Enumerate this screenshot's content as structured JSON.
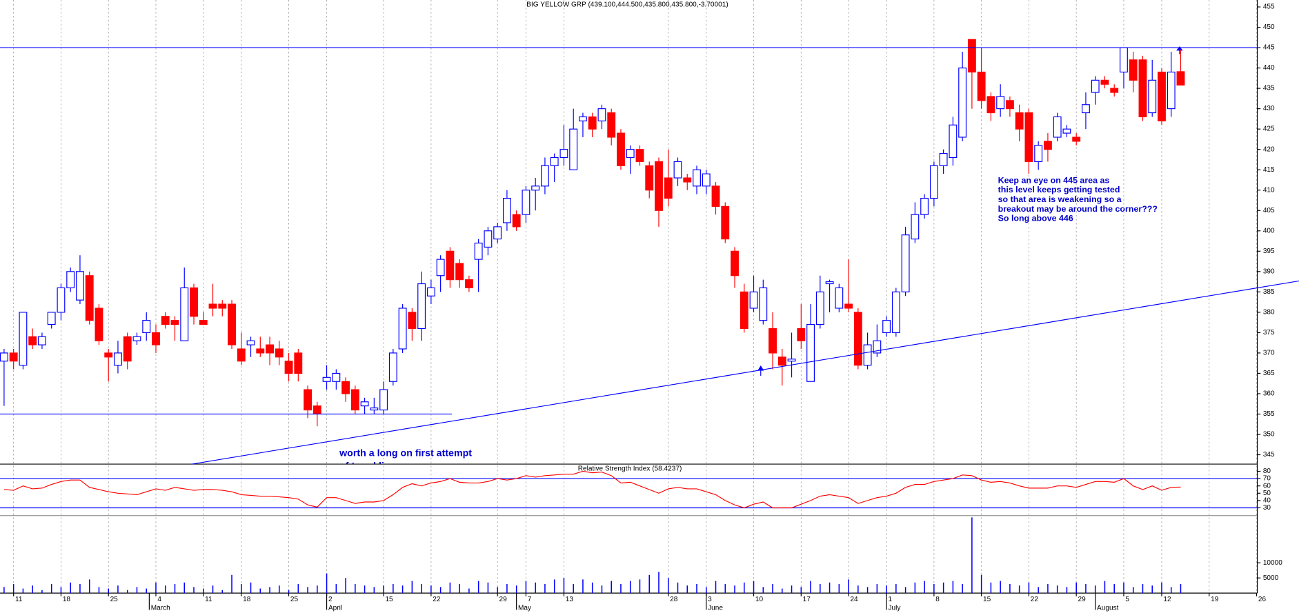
{
  "chart_data": [
    {
      "type": "candlestick",
      "title": "BIG YELLOW GRP (439.100,444.500,435.800,435.800,-3.70001)",
      "open": [
        368,
        370,
        367,
        374,
        372,
        377,
        380,
        386,
        383,
        389,
        381,
        370,
        367,
        374,
        373,
        375,
        375,
        379,
        378,
        373,
        386,
        378,
        382,
        382,
        382,
        371,
        372,
        371,
        372,
        371,
        368,
        370,
        361,
        357,
        363,
        363,
        363,
        361,
        357,
        356,
        356,
        363,
        371,
        380,
        376,
        384,
        389,
        395,
        392,
        388,
        393,
        396,
        398,
        402,
        404,
        404,
        410,
        411,
        416,
        418,
        415,
        427,
        428,
        427,
        429,
        424,
        418,
        420,
        416,
        417,
        413,
        413,
        413,
        411,
        411,
        411,
        406,
        395,
        385,
        381,
        378,
        376,
        369,
        368,
        376,
        363,
        377,
        387,
        381,
        382,
        380,
        367,
        370,
        375,
        375,
        385,
        398,
        404,
        408,
        416,
        418,
        423,
        447,
        439,
        433,
        430,
        432,
        429,
        429,
        417,
        422,
        423,
        424,
        423,
        429,
        434,
        437,
        435,
        439,
        442,
        442,
        429,
        439,
        430,
        439.1
      ],
      "high": [
        371,
        371,
        380,
        376,
        375,
        380,
        387,
        391,
        394,
        390,
        382,
        371,
        373,
        375,
        375,
        380,
        377,
        380,
        379,
        391,
        387,
        380,
        387,
        383,
        383,
        375,
        374,
        374,
        374,
        373,
        370,
        371,
        362,
        358,
        367,
        366,
        364,
        362,
        359,
        359,
        363,
        371,
        382,
        381,
        390,
        388,
        394,
        396,
        393,
        389,
        398,
        401,
        402,
        410,
        405,
        411,
        413,
        418,
        419,
        426,
        430,
        429,
        429,
        431,
        430,
        425,
        421,
        421,
        417,
        418,
        420,
        418,
        414,
        416,
        415,
        412,
        407,
        396,
        387,
        389,
        388,
        380,
        371,
        375,
        382,
        382,
        389,
        388,
        387,
        393,
        381,
        375,
        377,
        379,
        386,
        401,
        407,
        409,
        417,
        420,
        428,
        444,
        447,
        445,
        434,
        436,
        433,
        431,
        430,
        422,
        424,
        429,
        426,
        424,
        434,
        438,
        438,
        436,
        445,
        444,
        443,
        442,
        440,
        444,
        444.5
      ],
      "low": [
        357,
        366,
        366,
        371,
        371,
        376,
        378,
        385,
        382,
        377,
        372,
        363,
        365,
        366,
        372,
        373,
        370,
        376,
        373,
        373,
        377,
        377,
        379,
        379,
        371,
        367,
        369,
        369,
        367,
        367,
        363,
        363,
        354,
        352,
        361,
        361,
        358,
        355,
        355,
        355,
        355,
        362,
        370,
        373,
        373,
        382,
        385,
        386,
        386,
        385,
        385,
        394,
        397,
        400,
        400,
        402,
        405,
        409,
        412,
        416,
        415,
        423,
        423,
        425,
        421,
        415,
        414,
        416,
        408,
        401,
        406,
        411,
        410,
        409,
        409,
        404,
        397,
        386,
        375,
        380,
        377,
        366,
        362,
        364,
        371,
        363,
        376,
        380,
        380,
        380,
        366,
        366,
        369,
        374,
        374,
        384,
        397,
        403,
        406,
        414,
        416,
        422,
        430,
        430,
        427,
        428,
        428,
        422,
        414,
        415,
        417,
        422,
        423,
        421,
        425,
        431,
        435,
        433,
        435,
        434,
        427,
        428,
        426,
        428,
        435.8
      ],
      "close": [
        370,
        368,
        380,
        372,
        374,
        380,
        386,
        390,
        390,
        378,
        373,
        369,
        370,
        368,
        374,
        378,
        372,
        377,
        377,
        386,
        379,
        377,
        381,
        381,
        372,
        368,
        373,
        370,
        370,
        369,
        365,
        365,
        356,
        355,
        364,
        365,
        360,
        356,
        358,
        356.5,
        361,
        370,
        381,
        376,
        387,
        386,
        393,
        388,
        388,
        386,
        397,
        400,
        401,
        408,
        401,
        410,
        411,
        416,
        418,
        420,
        425,
        428,
        425,
        430,
        423,
        416,
        420,
        417,
        410,
        405,
        408,
        417,
        412,
        415,
        414,
        406,
        398,
        389,
        376,
        385,
        386,
        370,
        367,
        368.5,
        373,
        377,
        385,
        387.5,
        386,
        381,
        367,
        372,
        373,
        378,
        385,
        399,
        404,
        408,
        416,
        419,
        426,
        440,
        439,
        432,
        429,
        433,
        430,
        425,
        417,
        421,
        420,
        428,
        425,
        422,
        431,
        437,
        436,
        434,
        445,
        437,
        428,
        437,
        427,
        439,
        435.8
      ],
      "up_color": "#0000ff",
      "down_color": "#ff0000",
      "line_color": "#0000ff",
      "xlim": [
        -0.43,
        131.9
      ],
      "xticks": [
        {
          "value": 1,
          "label": "11"
        },
        {
          "value": 6,
          "label": "18"
        },
        {
          "value": 11,
          "label": "25"
        },
        {
          "value": 16,
          "label": "4"
        },
        {
          "value": 21,
          "label": "11"
        },
        {
          "value": 25,
          "label": "18"
        },
        {
          "value": 30,
          "label": "25"
        },
        {
          "value": 34,
          "label": "2"
        },
        {
          "value": 40,
          "label": "15"
        },
        {
          "value": 45,
          "label": "22"
        },
        {
          "value": 52,
          "label": "29"
        },
        {
          "value": 55,
          "label": "7"
        },
        {
          "value": 59,
          "label": "13"
        },
        {
          "value": 70,
          "label": "28"
        },
        {
          "value": 74,
          "label": "3"
        },
        {
          "value": 79,
          "label": "10"
        },
        {
          "value": 84,
          "label": "17"
        },
        {
          "value": 89,
          "label": "24"
        },
        {
          "value": 93,
          "label": "1"
        },
        {
          "value": 98,
          "label": "8"
        },
        {
          "value": 103,
          "label": "15"
        },
        {
          "value": 108,
          "label": "22"
        },
        {
          "value": 113,
          "label": "29"
        },
        {
          "value": 118,
          "label": "5"
        },
        {
          "value": 122,
          "label": "12"
        },
        {
          "value": 127,
          "label": "19"
        },
        {
          "value": 132,
          "label": "26"
        }
      ],
      "month_ticks": [
        {
          "value": 15.3,
          "label": "March"
        },
        {
          "value": 34,
          "label": "April"
        },
        {
          "value": 54,
          "label": "May"
        },
        {
          "value": 74,
          "label": "June"
        },
        {
          "value": 93,
          "label": "July"
        },
        {
          "value": 115,
          "label": "August"
        }
      ],
      "ylim": [
        342.7,
        456.7
      ],
      "yticks": [
        345,
        350,
        355,
        360,
        365,
        370,
        375,
        380,
        385,
        390,
        395,
        400,
        405,
        410,
        415,
        420,
        425,
        430,
        435,
        440,
        445,
        450,
        455
      ],
      "resistance": 445,
      "support": {
        "value": 355,
        "x": [
          -0.43,
          47.2
        ]
      },
      "trendline": {
        "x": [
          19.8,
          136.5
        ],
        "y": [
          342.7,
          387.7
        ]
      },
      "annotations": [
        "Keep an eye on 445 area  as",
        "this level keeps getting tested",
        "so that area is weakening so a",
        "breakout may be around the corner???",
        "So long above 446"
      ],
      "annotations2": [
        "worth a long on first attempt",
        "of trend line"
      ]
    },
    {
      "type": "line",
      "title": "Relative Strength Index (58.4237)",
      "color": "#ff0000",
      "values": [
        55,
        54,
        60,
        56,
        57,
        62,
        66,
        68,
        68,
        58,
        55,
        52,
        50,
        49,
        48,
        52,
        56,
        54,
        58,
        56,
        54,
        55,
        55,
        54,
        52,
        48,
        47,
        46,
        46,
        45,
        44,
        42,
        34,
        31,
        44,
        44,
        40,
        36,
        38,
        38,
        40,
        48,
        58,
        63,
        60,
        64,
        66,
        70,
        65,
        64,
        64,
        66,
        70,
        68,
        70,
        74,
        72,
        74,
        75,
        76,
        76,
        80,
        78,
        79,
        74,
        64,
        65,
        60,
        55,
        50,
        56,
        58,
        56,
        56,
        52,
        48,
        40,
        34,
        30,
        35,
        38,
        30,
        30,
        30,
        35,
        40,
        46,
        48,
        46,
        44,
        36,
        40,
        44,
        46,
        50,
        58,
        62,
        62,
        66,
        68,
        70,
        75,
        74,
        68,
        65,
        66,
        64,
        60,
        57,
        57,
        57,
        60,
        60,
        58,
        62,
        66,
        66,
        65,
        70,
        60,
        55,
        60,
        54,
        58,
        58.4
      ],
      "ylim": [
        19,
        89.8
      ],
      "yticks": [
        30,
        40,
        50,
        60,
        70,
        80
      ],
      "levels": [
        30,
        70
      ]
    },
    {
      "type": "bar",
      "color": "#0000ff",
      "values": [
        2000,
        3000,
        1500,
        2500,
        1000,
        3000,
        2000,
        3500,
        3000,
        4500,
        2000,
        1500,
        2500,
        1000,
        2000,
        1500,
        3500,
        2500,
        3000,
        3500,
        2000,
        1500,
        2500,
        1000,
        6000,
        3000,
        3500,
        1500,
        2000,
        2500,
        1000,
        3000,
        2000,
        2500,
        6500,
        3000,
        5000,
        3000,
        2500,
        2000,
        2500,
        3000,
        2500,
        4000,
        3000,
        2500,
        2000,
        3500,
        3000,
        1500,
        4000,
        3500,
        2000,
        3000,
        2500,
        4000,
        3500,
        3000,
        4500,
        5000,
        3000,
        4500,
        3500,
        2500,
        4000,
        3000,
        4000,
        4500,
        6000,
        7000,
        5000,
        3500,
        2500,
        3000,
        2000,
        4000,
        3000,
        2500,
        3500,
        4000,
        2000,
        3000,
        1500,
        2500,
        2000,
        4000,
        3000,
        3500,
        3000,
        4500,
        2500,
        2000,
        3000,
        2500,
        3000,
        2000,
        3500,
        4000,
        3000,
        3500,
        4000,
        3000,
        25000,
        6000,
        3500,
        4000,
        3000,
        2500,
        3500,
        2000,
        3000,
        2500,
        2000,
        3500,
        3000,
        2500,
        4000,
        3000,
        3500,
        2000,
        3000,
        2500,
        3500,
        2000,
        3000
      ],
      "ylim": [
        0,
        25500
      ],
      "yticks": [
        5000,
        10000
      ]
    }
  ]
}
